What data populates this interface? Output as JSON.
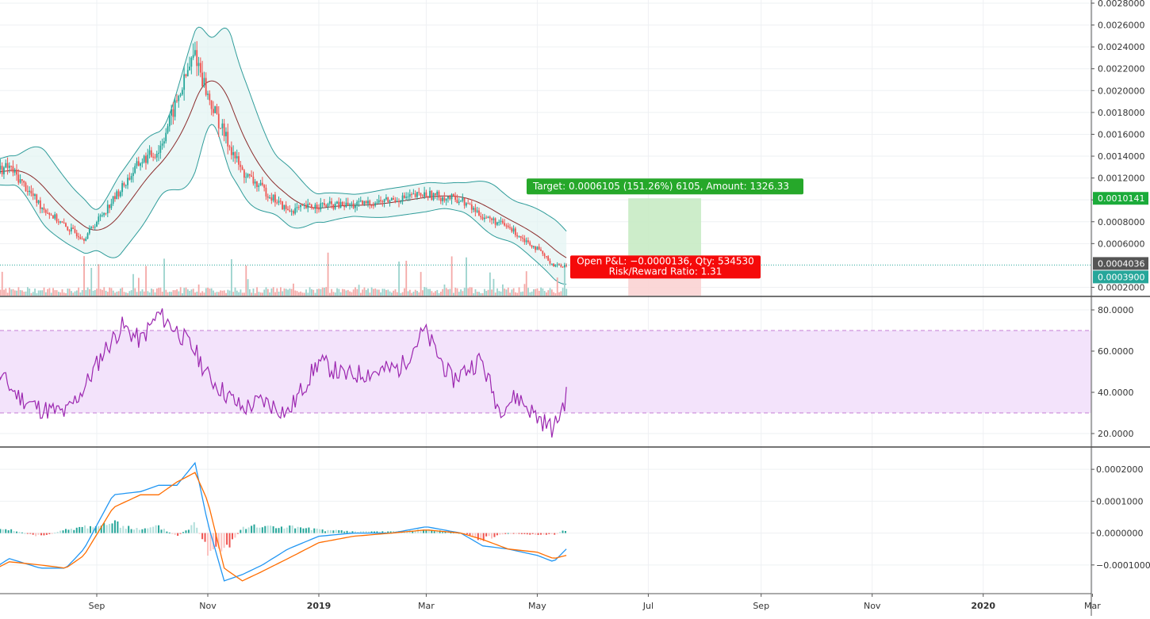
{
  "chart_data": [
    {
      "type": "candlestick",
      "panel": "price",
      "overlays": [
        "bollinger-bands",
        "moving-average",
        "volume"
      ],
      "ylim": [
        0.00016,
        0.0028
      ],
      "y_ticks": [
        "0.0028000",
        "0.0026000",
        "0.0024000",
        "0.0022000",
        "0.0020000",
        "0.0018000",
        "0.0016000",
        "0.0014000",
        "0.0012000",
        "0.0010000",
        "0.0008000",
        "0.0006000",
        "0.0002000"
      ],
      "price_series": {
        "dates": [
          "2018-07-01",
          "2018-07-15",
          "2018-08-01",
          "2018-08-15",
          "2018-08-25",
          "2018-09-10",
          "2018-09-25",
          "2018-10-05",
          "2018-10-15",
          "2018-10-25",
          "2018-11-01",
          "2018-11-10",
          "2018-11-20",
          "2018-12-01",
          "2018-12-15",
          "2019-01-01",
          "2019-01-20",
          "2019-02-10",
          "2019-03-01",
          "2019-03-20",
          "2019-04-01",
          "2019-04-15",
          "2019-05-01",
          "2019-05-10",
          "2019-05-17"
        ],
        "close": [
          0.00125,
          0.0013,
          0.00095,
          0.00075,
          0.00065,
          0.001,
          0.00135,
          0.00145,
          0.0019,
          0.00235,
          0.00195,
          0.0016,
          0.00125,
          0.0011,
          0.0009,
          0.00095,
          0.00095,
          0.001,
          0.00105,
          0.001,
          0.00085,
          0.00075,
          0.00055,
          0.0004,
          0.0004
        ]
      },
      "current_price": "0.0004036",
      "price_tags": [
        "0.0010141",
        "0.0004036",
        "0.0003900"
      ],
      "position": {
        "target_text": "Target: 0.0006105 (151.26%) 6105, Amount: 1326.33",
        "pnl_text": "Open P&L: −0.0000136, Qty: 534530",
        "ratio_text": "Risk/Reward Ratio: 1.31",
        "entry": 0.00039,
        "target": 0.0010141,
        "stop": 0.0001,
        "start": "2019-06-20",
        "end": "2019-07-30"
      },
      "colors": {
        "up": "#26a69a",
        "down": "#ef5350",
        "band": "#2f9c9a",
        "ma": "#8b2c2c",
        "target": "#26a82a",
        "stop": "#f50a0a"
      }
    },
    {
      "type": "line",
      "panel": "rsi",
      "ylim": [
        15,
        85
      ],
      "y_ticks": [
        "80.0000",
        "60.0000",
        "40.0000",
        "20.0000"
      ],
      "band": [
        30,
        70
      ],
      "series": [
        {
          "x": [
            "2018-07-01",
            "2018-07-10",
            "2018-07-20",
            "2018-08-01",
            "2018-08-15",
            "2018-08-25",
            "2018-09-05",
            "2018-09-15",
            "2018-09-25",
            "2018-10-05",
            "2018-10-15",
            "2018-10-25",
            "2018-11-01",
            "2018-11-10",
            "2018-11-20",
            "2018-12-01",
            "2018-12-15",
            "2019-01-01",
            "2019-01-15",
            "2019-02-01",
            "2019-02-15",
            "2019-02-28",
            "2019-03-15",
            "2019-03-31",
            "2019-04-10",
            "2019-04-20",
            "2019-05-01",
            "2019-05-10",
            "2019-05-17"
          ],
          "y": [
            35,
            48,
            38,
            32,
            30,
            42,
            60,
            72,
            65,
            78,
            70,
            60,
            48,
            40,
            32,
            36,
            30,
            55,
            48,
            50,
            52,
            70,
            46,
            56,
            32,
            38,
            28,
            22,
            38
          ],
          "color": "#9c27b0"
        }
      ],
      "colors": {
        "band_fill": "#f3e3fb",
        "band_line": "#c47ed6"
      }
    },
    {
      "type": "line",
      "panel": "macd",
      "ylim": [
        -0.00018,
        0.00026
      ],
      "y_ticks": [
        "0.0002000",
        "0.0001000",
        "0.0000000",
        "−0.0001000"
      ],
      "x": [
        "2018-07-01",
        "2018-07-15",
        "2018-08-01",
        "2018-08-15",
        "2018-08-25",
        "2018-09-10",
        "2018-09-25",
        "2018-10-05",
        "2018-10-15",
        "2018-10-25",
        "2018-11-01",
        "2018-11-10",
        "2018-11-20",
        "2018-12-01",
        "2018-12-15",
        "2019-01-01",
        "2019-01-20",
        "2019-02-10",
        "2019-03-01",
        "2019-03-20",
        "2019-04-01",
        "2019-04-15",
        "2019-05-01",
        "2019-05-10",
        "2019-05-17"
      ],
      "series": [
        {
          "name": "",
          "color": "#2196f3",
          "values": [
            -0.00013,
            -8e-05,
            -0.00011,
            -0.00011,
            -5e-05,
            0.00012,
            0.00013,
            0.00015,
            0.00015,
            0.00022,
            3e-05,
            -0.00015,
            -0.00013,
            -0.0001,
            -5e-05,
            -1e-05,
            0.0,
            0.0,
            2e-05,
            0.0,
            -4e-05,
            -5e-05,
            -7e-05,
            -9e-05,
            -5e-05
          ]
        },
        {
          "name": "",
          "color": "#ff6d00",
          "values": [
            -0.00013,
            -9e-05,
            -0.0001,
            -0.00011,
            -7e-05,
            8e-05,
            0.00012,
            0.00012,
            0.00016,
            0.00019,
            0.0001,
            -0.00011,
            -0.00015,
            -0.00012,
            -8e-05,
            -3e-05,
            -1e-05,
            0.0,
            1e-05,
            0.0,
            -2e-05,
            -5e-05,
            -6e-05,
            -8e-05,
            -7e-05
          ]
        }
      ],
      "histogram": [
        1e-05,
        1e-05,
        -1e-05,
        1e-05,
        2e-05,
        3e-05,
        1e-05,
        2e-05,
        -1e-05,
        3e-05,
        -6e-05,
        -7e-05,
        2e-05,
        2e-05,
        2e-05,
        1e-05,
        5e-06,
        5e-06,
        1e-05,
        0.0,
        -2e-05,
        0.0,
        -5e-06,
        -5e-06,
        1e-05
      ]
    }
  ],
  "x_axis": {
    "labels": [
      {
        "date": "2018-09-01",
        "text": "Sep",
        "bold": false
      },
      {
        "date": "2018-11-01",
        "text": "Nov",
        "bold": false
      },
      {
        "date": "2019-01-01",
        "text": "2019",
        "bold": true
      },
      {
        "date": "2019-03-01",
        "text": "Mar",
        "bold": false
      },
      {
        "date": "2019-05-01",
        "text": "May",
        "bold": false
      },
      {
        "date": "2019-07-01",
        "text": "Jul",
        "bold": false
      },
      {
        "date": "2019-09-01",
        "text": "Sep",
        "bold": false
      },
      {
        "date": "2019-11-01",
        "text": "Nov",
        "bold": false
      },
      {
        "date": "2020-01-01",
        "text": "2020",
        "bold": true
      },
      {
        "date": "2020-03-01",
        "text": "Mar",
        "bold": false
      }
    ]
  }
}
